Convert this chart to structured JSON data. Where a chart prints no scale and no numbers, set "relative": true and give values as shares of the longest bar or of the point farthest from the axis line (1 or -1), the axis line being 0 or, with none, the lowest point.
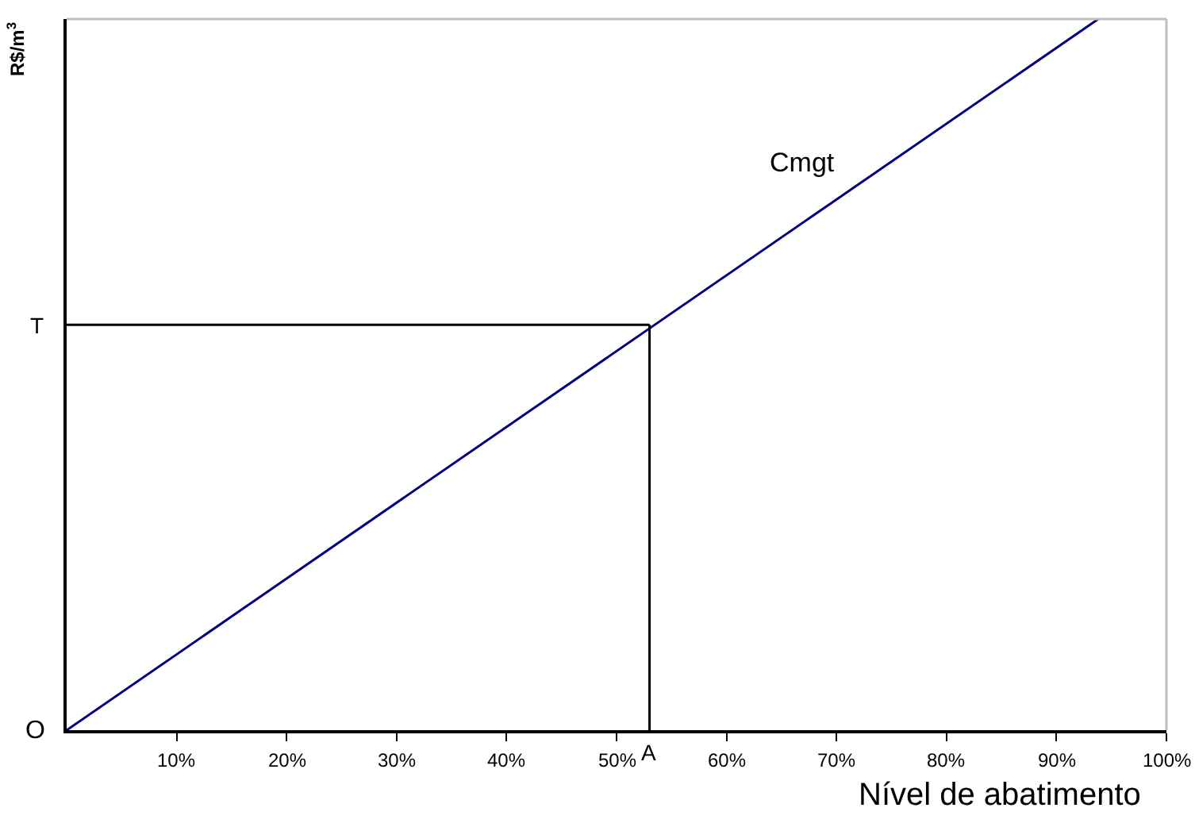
{
  "chart_data": {
    "type": "line",
    "relative": true,
    "xlabel": "Nível de abatimento",
    "ylabel": "R$/m$^{3}$",
    "xlim": [
      0,
      100
    ],
    "xticks": [
      {
        "value": 10,
        "label": "10%"
      },
      {
        "value": 20,
        "label": "20%"
      },
      {
        "value": 30,
        "label": "30%"
      },
      {
        "value": 40,
        "label": "40%"
      },
      {
        "value": 50,
        "label": "50%"
      },
      {
        "value": 60,
        "label": "60%"
      },
      {
        "value": 70,
        "label": "70%"
      },
      {
        "value": 80,
        "label": "80%"
      },
      {
        "value": 90,
        "label": "90%"
      },
      {
        "value": 100,
        "label": "100%"
      }
    ],
    "series": [
      {
        "name": "Cmgt",
        "color": "#000080",
        "x": [
          0,
          93.8
        ],
        "values": [
          0,
          1
        ]
      },
      {
        "color": "#000000",
        "x": [
          0,
          53
        ],
        "values": [
          0.57,
          0.57
        ]
      },
      {
        "color": "#000000",
        "x": [
          53,
          53
        ],
        "values": [
          0,
          0.57
        ]
      }
    ],
    "annotations": [
      "T",
      "O",
      "A"
    ],
    "grid": false,
    "legend": false,
    "marker": "none",
    "line_style": "solid"
  }
}
